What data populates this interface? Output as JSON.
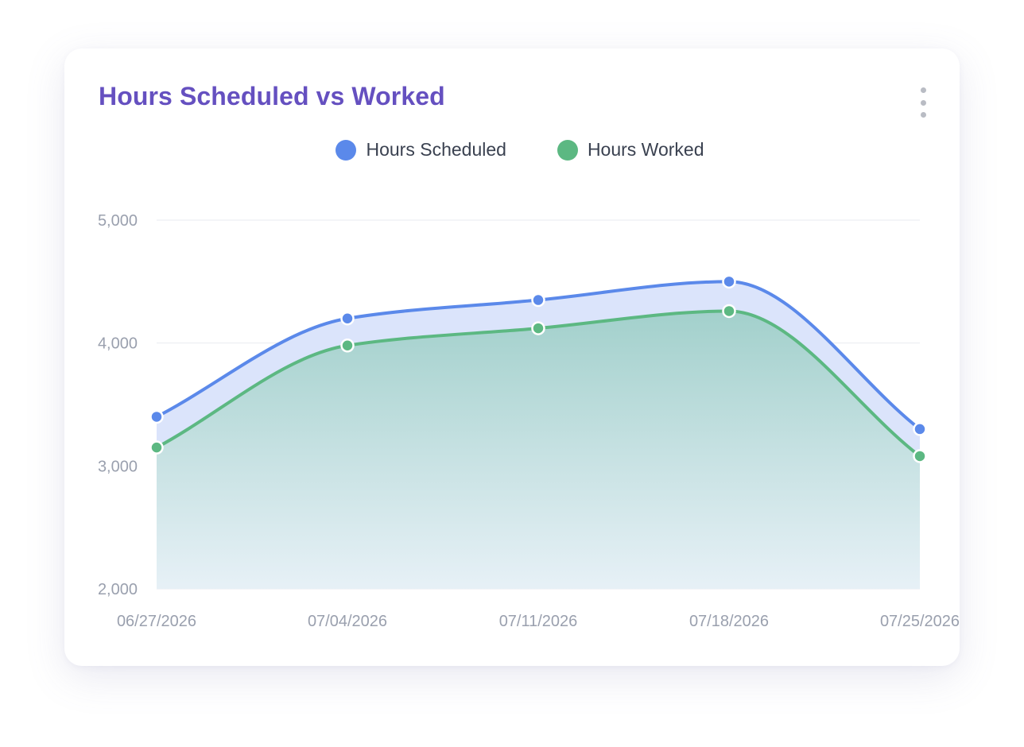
{
  "card": {
    "title": "Hours Scheduled vs Worked",
    "menu_icon": "more-vertical-icon"
  },
  "legend": [
    {
      "label": "Hours Scheduled",
      "color": "#5b89ea"
    },
    {
      "label": "Hours Worked",
      "color": "#5cb882"
    }
  ],
  "chart_data": {
    "type": "area",
    "title": "Hours Scheduled vs Worked",
    "xlabel": "",
    "ylabel": "",
    "categories": [
      "06/27/2026",
      "07/04/2026",
      "07/11/2026",
      "07/18/2026",
      "07/25/2026"
    ],
    "series": [
      {
        "name": "Hours Scheduled",
        "color": "#5b89ea",
        "fill": "#dbe4fb",
        "values": [
          3400,
          4200,
          4350,
          4500,
          3300
        ]
      },
      {
        "name": "Hours Worked",
        "color": "#5cb882",
        "fill": "#a9d3d3",
        "values": [
          3150,
          3980,
          4120,
          4260,
          3080
        ]
      }
    ],
    "ylim": [
      2000,
      5000
    ],
    "yticks": [
      2000,
      3000,
      4000,
      5000
    ],
    "ytick_labels": [
      "2,000",
      "3,000",
      "4,000",
      "5,000"
    ],
    "grid": true,
    "curve": "smooth",
    "legend_position": "top-center"
  }
}
